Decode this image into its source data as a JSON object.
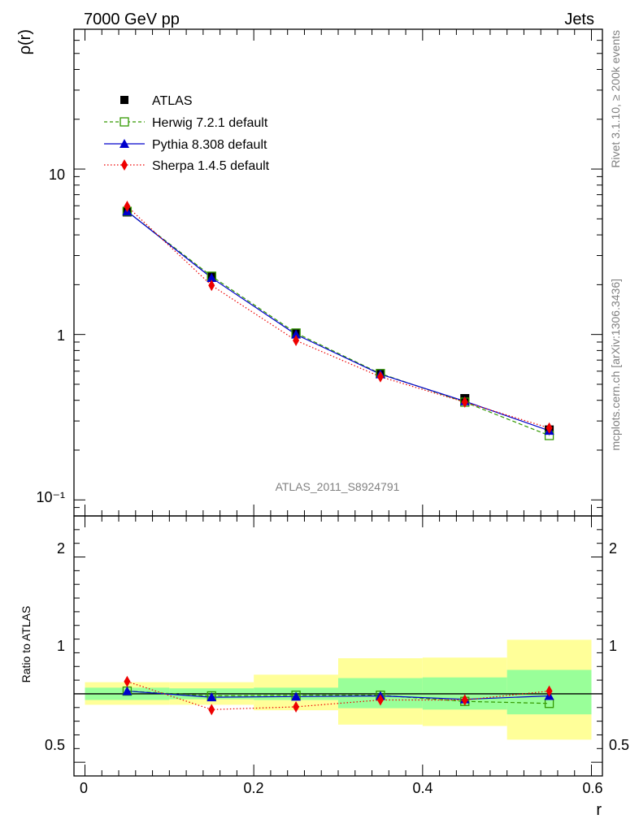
{
  "chart_data": [
    {
      "type": "line",
      "panel": "main",
      "title_left": "7000 GeV pp",
      "title_right": "Jets",
      "ylabel": "ρ(r)",
      "yscale": "log",
      "ylim": [
        0.08,
        70
      ],
      "xlim": [
        -0.013,
        0.613
      ],
      "ytick_labels": [
        "10",
        "1",
        "10⁻¹"
      ],
      "watermark": "ATLAS_2011_S8924791",
      "side_label_top": "Rivet 3.1.10, ≥ 200k events",
      "side_label_bottom": "mcplots.cern.ch [arXiv:1306.3436]",
      "legend_position": "top-left",
      "x": [
        0.05,
        0.15,
        0.25,
        0.35,
        0.45,
        0.55
      ],
      "series": [
        {
          "name": "ATLAS",
          "color": "#000000",
          "marker": "square-filled",
          "line": "none",
          "values": [
            5.5,
            2.25,
            1.02,
            0.58,
            0.41,
            0.265
          ]
        },
        {
          "name": "Herwig 7.2.1 default",
          "color": "#339900",
          "marker": "square-open",
          "line": "dashed",
          "values": [
            5.55,
            2.25,
            1.02,
            0.58,
            0.39,
            0.245
          ]
        },
        {
          "name": "Pythia 8.308 default",
          "color": "#0000cc",
          "marker": "triangle-filled",
          "line": "solid",
          "values": [
            5.55,
            2.2,
            1.0,
            0.575,
            0.395,
            0.262
          ]
        },
        {
          "name": "Sherpa 1.4.5 default",
          "color": "#ee0000",
          "marker": "diamond-filled",
          "line": "dotted",
          "values": [
            5.95,
            1.98,
            0.92,
            0.555,
            0.39,
            0.272
          ]
        }
      ]
    },
    {
      "type": "line",
      "panel": "ratio",
      "ylabel": "Ratio to ATLAS",
      "xlabel": "r",
      "ylim": [
        0.4,
        2.3
      ],
      "xlim": [
        -0.013,
        0.613
      ],
      "yticks": [
        0.5,
        1,
        2
      ],
      "ytick_labels": [
        "0.5",
        "1",
        "2"
      ],
      "xticks": [
        0,
        0.2,
        0.4,
        0.6
      ],
      "xtick_labels": [
        "0",
        "0.2",
        "0.4",
        "0.6"
      ],
      "bands": {
        "edges": [
          0.0,
          0.1,
          0.2,
          0.3,
          0.4,
          0.5,
          0.6
        ],
        "stat_low": [
          0.955,
          0.96,
          0.955,
          0.895,
          0.885,
          0.85
        ],
        "stat_high": [
          1.045,
          1.04,
          1.045,
          1.115,
          1.12,
          1.175
        ],
        "total_low": [
          0.92,
          0.92,
          0.88,
          0.775,
          0.765,
          0.665
        ],
        "total_high": [
          1.085,
          1.085,
          1.14,
          1.26,
          1.265,
          1.395
        ],
        "stat_color": "#99ff99",
        "total_color": "#ffff99"
      },
      "x": [
        0.05,
        0.15,
        0.25,
        0.35,
        0.45,
        0.55
      ],
      "series": [
        {
          "name": "Herwig 7.2.1 default",
          "color": "#339900",
          "marker": "square-open",
          "line": "dashed",
          "values": [
            1.02,
            0.985,
            0.99,
            0.99,
            0.945,
            0.93
          ]
        },
        {
          "name": "Pythia 8.308 default",
          "color": "#0000cc",
          "marker": "triangle-filled",
          "line": "solid",
          "values": [
            1.02,
            0.975,
            0.98,
            0.985,
            0.96,
            0.985
          ]
        },
        {
          "name": "Sherpa 1.4.5 default",
          "color": "#ee0000",
          "marker": "diamond-filled",
          "line": "dotted",
          "values": [
            1.09,
            0.885,
            0.905,
            0.955,
            0.955,
            1.02
          ]
        }
      ]
    }
  ]
}
